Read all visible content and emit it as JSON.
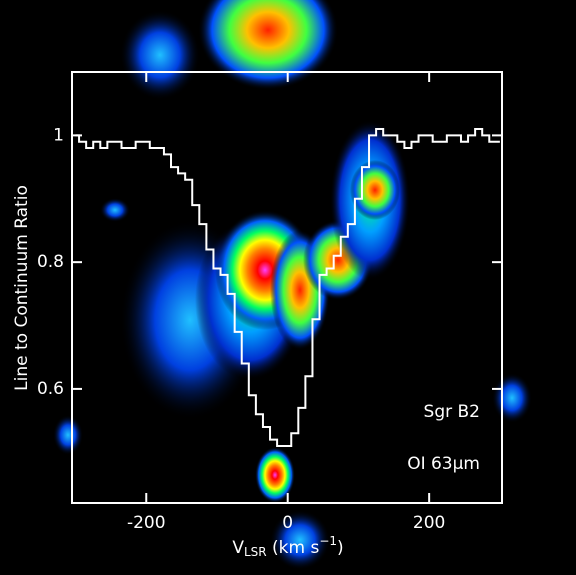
{
  "chart_data": {
    "type": "line",
    "step": true,
    "ylabel": "Line to Continuum Ratio",
    "xlabel": {
      "main": "V",
      "sub": "LSR",
      "unit": " (km s",
      "sup": "−1",
      "close": ")"
    },
    "annotations": [
      "Sgr B2",
      "OI 63μm"
    ],
    "x": [
      -300,
      -290,
      -280,
      -270,
      -260,
      -250,
      -240,
      -230,
      -220,
      -210,
      -200,
      -190,
      -180,
      -170,
      -160,
      -150,
      -140,
      -130,
      -120,
      -110,
      -100,
      -90,
      -80,
      -70,
      -60,
      -50,
      -40,
      -30,
      -20,
      -10,
      0,
      10,
      20,
      30,
      40,
      50,
      60,
      70,
      80,
      90,
      100,
      110,
      120,
      130,
      140,
      150,
      160,
      170,
      180,
      190,
      200,
      210,
      220,
      230,
      240,
      250,
      260,
      270,
      280,
      290,
      300
    ],
    "series": [
      {
        "color": "#ffffff",
        "values": [
          1.0,
          0.99,
          0.98,
          0.99,
          0.98,
          0.99,
          0.99,
          0.98,
          0.98,
          0.99,
          0.99,
          0.98,
          0.98,
          0.97,
          0.95,
          0.94,
          0.93,
          0.89,
          0.86,
          0.82,
          0.79,
          0.78,
          0.75,
          0.69,
          0.64,
          0.59,
          0.56,
          0.54,
          0.52,
          0.51,
          0.51,
          0.53,
          0.57,
          0.62,
          0.71,
          0.78,
          0.79,
          0.81,
          0.84,
          0.86,
          0.9,
          0.95,
          1.0,
          1.01,
          1.0,
          1.0,
          0.99,
          0.98,
          0.99,
          1.0,
          1.0,
          0.99,
          0.99,
          1.0,
          1.0,
          0.99,
          1.0,
          1.01,
          1.0,
          0.99,
          0.99
        ]
      }
    ],
    "xlim": [
      -305,
      303
    ],
    "ylim": [
      0.42,
      1.1
    ],
    "xticks": [
      -200,
      0,
      200
    ],
    "yticks": [
      0.6,
      0.8,
      1
    ]
  }
}
